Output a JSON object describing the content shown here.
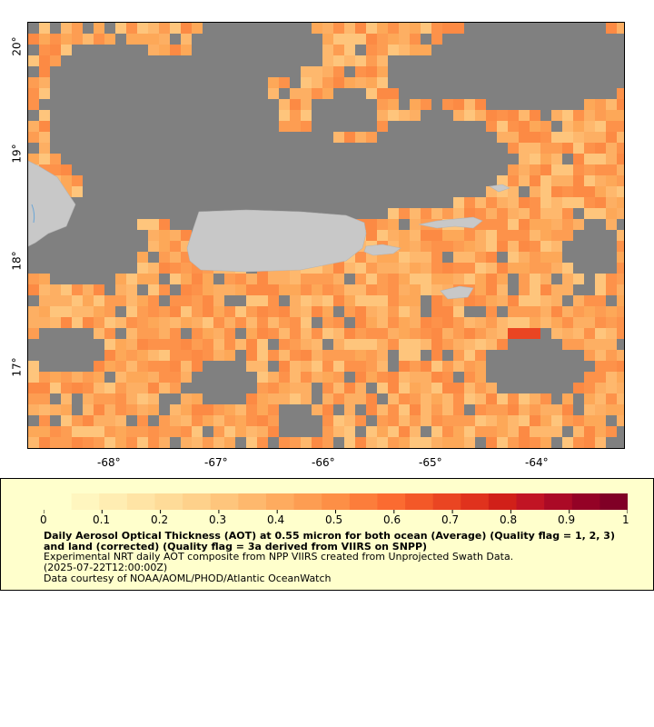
{
  "map": {
    "lon_ticks": [
      "-68°",
      "-67°",
      "-66°",
      "-65°",
      "-64°"
    ],
    "lat_ticks": [
      "20°",
      "19°",
      "18°",
      "17°"
    ],
    "colors": {
      "no_data": "#808080",
      "land": "#c8c8c8",
      "water_line": "#6aa6d6"
    }
  },
  "legend": {
    "scale_labels": [
      "0",
      "0.1",
      "0.2",
      "0.3",
      "0.4",
      "0.5",
      "0.6",
      "0.7",
      "0.8",
      "0.9",
      "1"
    ],
    "title": "Daily Aerosol Optical Thickness (AOT) at 0.55 micron for both ocean (Average) (Quality flag = 1, 2, 3) and land (corrected) (Quality flag = 3a derived from VIIRS on SNPP)",
    "line1": "Experimental NRT daily AOT composite from NPP VIIRS created from Unprojected Swath Data.",
    "line2": "(2025-07-22T12:00:00Z)",
    "line3": "Data courtesy of NOAA/AOML/PHOD/Atlantic OceanWatch",
    "colors": [
      "#ffffcc",
      "#fff6bf",
      "#ffedb2",
      "#ffe4a5",
      "#fedb98",
      "#fed18b",
      "#fec57c",
      "#feb86d",
      "#feab5f",
      "#fd9d52",
      "#fd8f46",
      "#fc7d3b",
      "#fb6b31",
      "#f35828",
      "#ea4522",
      "#e0321d",
      "#d12019",
      "#c11424",
      "#ab0a26",
      "#940226",
      "#800026"
    ]
  }
}
